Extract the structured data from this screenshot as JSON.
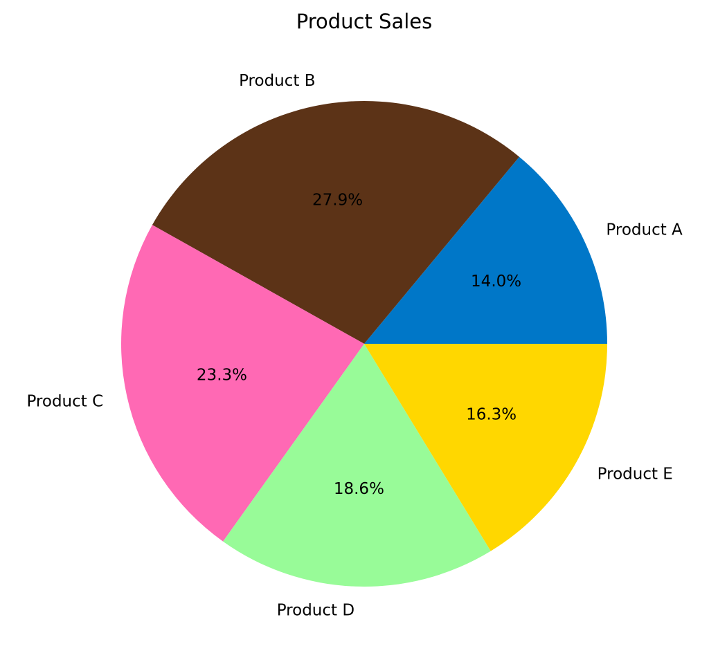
{
  "chart_data": {
    "type": "pie",
    "title": "Product Sales",
    "categories": [
      "Product A",
      "Product B",
      "Product C",
      "Product D",
      "Product E"
    ],
    "values": [
      14.0,
      27.9,
      23.3,
      18.6,
      16.3
    ],
    "value_labels": [
      "14.0%",
      "27.9%",
      "23.3%",
      "18.6%",
      "16.3%"
    ],
    "colors": [
      "#0077C8",
      "#5C3317",
      "#FF69B4",
      "#98FB98",
      "#FFD700"
    ]
  }
}
